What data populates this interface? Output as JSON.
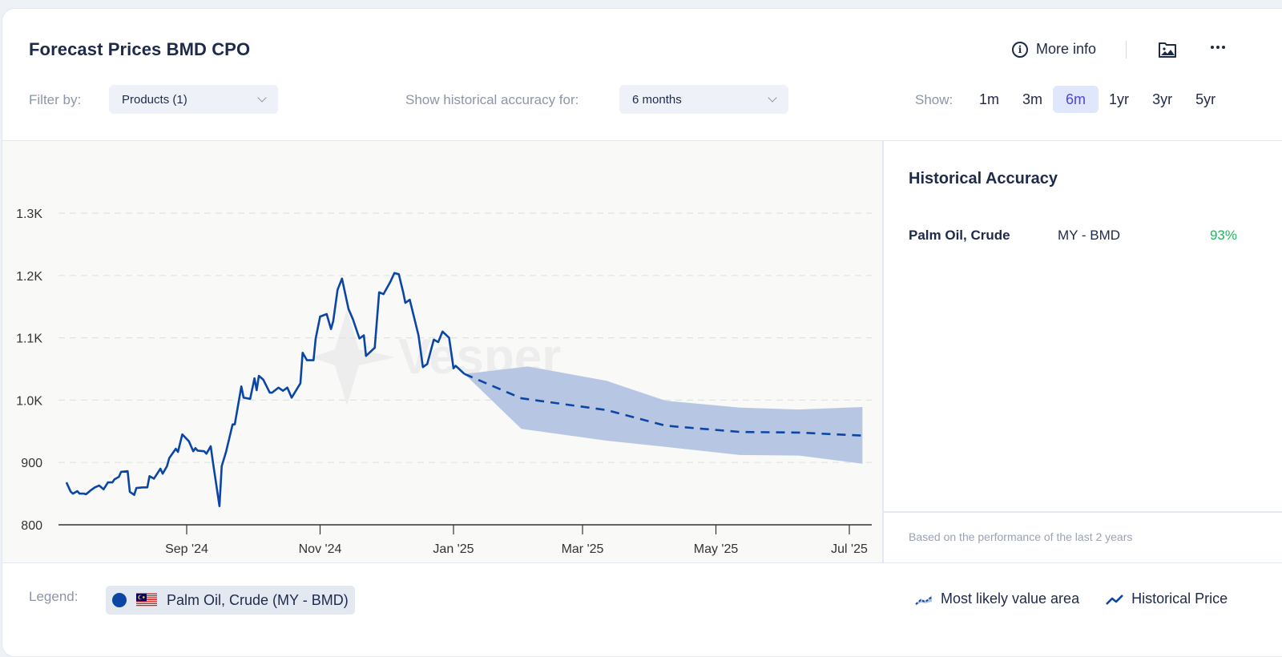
{
  "header": {
    "title": "Forecast Prices BMD CPO",
    "more_info": "More info",
    "icons": [
      "info-icon",
      "image-folder-icon",
      "more-dots-icon"
    ]
  },
  "filters": {
    "filter_label": "Filter by:",
    "products_value": "Products (1)",
    "accuracy_label": "Show historical accuracy for:",
    "accuracy_value": "6 months",
    "show_label": "Show:",
    "ranges": [
      "1m",
      "3m",
      "6m",
      "1yr",
      "3yr",
      "5yr"
    ],
    "active_range": "6m"
  },
  "side_panel": {
    "title": "Historical Accuracy",
    "rows": [
      {
        "product": "Palm Oil, Crude",
        "market": "MY - BMD",
        "accuracy": "93%"
      }
    ],
    "footnote": "Based on the performance of the last 2 years",
    "accuracy_color": "#22b35e"
  },
  "legend": {
    "label": "Legend:",
    "series_chip": "Palm Oil, Crude (MY - BMD)",
    "series_color": "#0b46a5",
    "most_likely": "Most likely value area",
    "historical": "Historical Price"
  },
  "watermark": "Vesper",
  "chart_data": {
    "type": "line",
    "title": "Forecast Prices BMD CPO",
    "xlabel": "",
    "ylabel": "",
    "ylim": [
      800,
      1300
    ],
    "yticks": [
      800,
      900,
      1000,
      1100,
      1200,
      1300
    ],
    "ytick_labels": [
      "800",
      "900",
      "1.0K",
      "1.1K",
      "1.2K",
      "1.3K"
    ],
    "xlim": [
      "2024-07-03",
      "2025-07-12"
    ],
    "xticks": [
      "2024-09-01",
      "2024-11-01",
      "2025-01-01",
      "2025-03-01",
      "2025-05-01",
      "2025-07-01"
    ],
    "xtick_labels": [
      "Sep '24",
      "Nov '24",
      "Jan '25",
      "Mar '25",
      "May '25",
      "Jul '25"
    ],
    "grid": true,
    "colors": {
      "line": "#0b46a5",
      "band": "#b3c4e2"
    },
    "series": [
      {
        "name": "Historical Price",
        "style": "solid",
        "points": [
          [
            "2024-07-08",
            868
          ],
          [
            "2024-07-10",
            853
          ],
          [
            "2024-07-11",
            850
          ],
          [
            "2024-07-13",
            854
          ],
          [
            "2024-07-14",
            850
          ],
          [
            "2024-07-16",
            850
          ],
          [
            "2024-07-17",
            849
          ],
          [
            "2024-07-19",
            855
          ],
          [
            "2024-07-21",
            860
          ],
          [
            "2024-07-23",
            863
          ],
          [
            "2024-07-25",
            857
          ],
          [
            "2024-07-27",
            868
          ],
          [
            "2024-07-29",
            868
          ],
          [
            "2024-07-30",
            873
          ],
          [
            "2024-08-01",
            877
          ],
          [
            "2024-08-02",
            885
          ],
          [
            "2024-08-05",
            886
          ],
          [
            "2024-08-06",
            853
          ],
          [
            "2024-08-08",
            848
          ],
          [
            "2024-08-09",
            859
          ],
          [
            "2024-08-12",
            860
          ],
          [
            "2024-08-14",
            860
          ],
          [
            "2024-08-15",
            878
          ],
          [
            "2024-08-17",
            874
          ],
          [
            "2024-08-20",
            890
          ],
          [
            "2024-08-21",
            882
          ],
          [
            "2024-08-23",
            894
          ],
          [
            "2024-08-24",
            907
          ],
          [
            "2024-08-27",
            922
          ],
          [
            "2024-08-28",
            917
          ],
          [
            "2024-08-30",
            945
          ],
          [
            "2024-09-02",
            934
          ],
          [
            "2024-09-04",
            918
          ],
          [
            "2024-09-05",
            923
          ],
          [
            "2024-09-06",
            919
          ],
          [
            "2024-09-09",
            918
          ],
          [
            "2024-09-10",
            914
          ],
          [
            "2024-09-12",
            926
          ],
          [
            "2024-09-13",
            900
          ],
          [
            "2024-09-16",
            830
          ],
          [
            "2024-09-17",
            894
          ],
          [
            "2024-09-19",
            917
          ],
          [
            "2024-09-22",
            961
          ],
          [
            "2024-09-23",
            961
          ],
          [
            "2024-09-26",
            1022
          ],
          [
            "2024-09-27",
            1004
          ],
          [
            "2024-09-30",
            1002
          ],
          [
            "2024-10-02",
            1035
          ],
          [
            "2024-10-03",
            1016
          ],
          [
            "2024-10-04",
            1039
          ],
          [
            "2024-10-06",
            1033
          ],
          [
            "2024-10-09",
            1012
          ],
          [
            "2024-10-10",
            1012
          ],
          [
            "2024-10-13",
            1020
          ],
          [
            "2024-10-15",
            1015
          ],
          [
            "2024-10-17",
            1020
          ],
          [
            "2024-10-19",
            1004
          ],
          [
            "2024-10-23",
            1027
          ],
          [
            "2024-10-24",
            1076
          ],
          [
            "2024-10-26",
            1064
          ],
          [
            "2024-10-29",
            1064
          ],
          [
            "2024-10-30",
            1099
          ],
          [
            "2024-11-01",
            1134
          ],
          [
            "2024-11-04",
            1138
          ],
          [
            "2024-11-06",
            1114
          ],
          [
            "2024-11-07",
            1127
          ],
          [
            "2024-11-09",
            1177
          ],
          [
            "2024-11-11",
            1195
          ],
          [
            "2024-11-14",
            1146
          ],
          [
            "2024-11-16",
            1130
          ],
          [
            "2024-11-19",
            1099
          ],
          [
            "2024-11-21",
            1104
          ],
          [
            "2024-11-22",
            1071
          ],
          [
            "2024-11-26",
            1084
          ],
          [
            "2024-11-28",
            1173
          ],
          [
            "2024-11-30",
            1170
          ],
          [
            "2024-12-03",
            1189
          ],
          [
            "2024-12-05",
            1204
          ],
          [
            "2024-12-07",
            1202
          ],
          [
            "2024-12-09",
            1173
          ],
          [
            "2024-12-10",
            1156
          ],
          [
            "2024-12-12",
            1161
          ],
          [
            "2024-12-16",
            1104
          ],
          [
            "2024-12-18",
            1053
          ],
          [
            "2024-12-20",
            1058
          ],
          [
            "2024-12-23",
            1097
          ],
          [
            "2024-12-25",
            1093
          ],
          [
            "2024-12-27",
            1110
          ],
          [
            "2024-12-30",
            1100
          ],
          [
            "2025-01-01",
            1051
          ],
          [
            "2025-01-02",
            1055
          ],
          [
            "2025-01-06",
            1042
          ]
        ]
      },
      {
        "name": "Forecast (most likely)",
        "style": "dashed",
        "points": [
          [
            "2025-01-06",
            1042
          ],
          [
            "2025-02-01",
            1003
          ],
          [
            "2025-03-12",
            984
          ],
          [
            "2025-04-08",
            959
          ],
          [
            "2025-05-12",
            949
          ],
          [
            "2025-06-08",
            948
          ],
          [
            "2025-07-07",
            943
          ]
        ]
      },
      {
        "name": "Most likely value area",
        "style": "band",
        "upper": [
          [
            "2025-01-06",
            1042
          ],
          [
            "2025-02-04",
            1054
          ],
          [
            "2025-03-12",
            1031
          ],
          [
            "2025-04-08",
            999
          ],
          [
            "2025-05-12",
            988
          ],
          [
            "2025-06-08",
            985
          ],
          [
            "2025-07-07",
            989
          ]
        ],
        "lower": [
          [
            "2025-01-06",
            1042
          ],
          [
            "2025-02-01",
            954
          ],
          [
            "2025-03-12",
            935
          ],
          [
            "2025-04-08",
            925
          ],
          [
            "2025-05-12",
            912
          ],
          [
            "2025-06-08",
            911
          ],
          [
            "2025-07-07",
            898
          ]
        ]
      }
    ]
  }
}
